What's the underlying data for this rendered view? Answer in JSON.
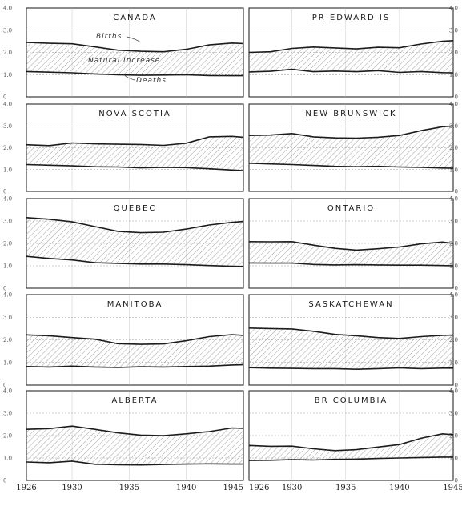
{
  "chart_data": {
    "type": "area",
    "x_years": [
      1926,
      1928,
      1930,
      1932,
      1934,
      1936,
      1938,
      1940,
      1942,
      1944,
      1945
    ],
    "x_tick_labels": [
      "1926",
      "1930",
      "1935",
      "1940",
      "1945"
    ],
    "y_tick_labels": [
      "0",
      "1.0",
      "2.0",
      "3.0",
      "4.0"
    ],
    "ylim": [
      0,
      40
    ],
    "annotations": {
      "births": "Births",
      "natural_increase": "Natural Increase",
      "deaths": "Deaths"
    },
    "panels": [
      {
        "title": "CANADA",
        "series": [
          {
            "name": "Births",
            "values": [
              24.5,
              24.1,
              23.9,
              22.5,
              21.0,
              20.5,
              20.3,
              21.4,
              23.4,
              24.2,
              24.0
            ]
          },
          {
            "name": "Deaths",
            "values": [
              11.4,
              11.1,
              10.8,
              10.3,
              9.9,
              9.7,
              9.8,
              9.9,
              9.6,
              9.5,
              9.5
            ]
          }
        ]
      },
      {
        "title": "PR EDWARD IS",
        "series": [
          {
            "name": "Births",
            "values": [
              20.0,
              20.3,
              21.8,
              22.4,
              22.0,
              21.6,
              22.3,
              22.1,
              23.8,
              25.0,
              25.3
            ]
          },
          {
            "name": "Deaths",
            "values": [
              11.2,
              11.5,
              12.4,
              11.3,
              11.6,
              11.3,
              11.8,
              11.0,
              11.4,
              10.9,
              10.8
            ]
          }
        ]
      },
      {
        "title": "NOVA SCOTIA",
        "series": [
          {
            "name": "Births",
            "values": [
              21.4,
              21.0,
              22.2,
              21.8,
              21.6,
              21.5,
              21.1,
              22.1,
              25.0,
              25.2,
              24.8
            ]
          },
          {
            "name": "Deaths",
            "values": [
              12.3,
              12.0,
              11.7,
              11.3,
              11.2,
              10.8,
              11.0,
              10.9,
              10.4,
              9.8,
              9.5
            ]
          }
        ]
      },
      {
        "title": "NEW BRUNSWICK",
        "series": [
          {
            "name": "Births",
            "values": [
              25.6,
              25.8,
              26.5,
              25.0,
              24.5,
              24.4,
              24.8,
              25.6,
              27.8,
              29.6,
              30.0
            ]
          },
          {
            "name": "Deaths",
            "values": [
              12.9,
              12.6,
              12.3,
              11.9,
              11.5,
              11.3,
              11.5,
              11.2,
              11.0,
              10.7,
              10.6
            ]
          }
        ]
      },
      {
        "title": "QUEBEC",
        "series": [
          {
            "name": "Births",
            "values": [
              31.5,
              30.8,
              29.6,
              27.5,
              25.4,
              24.8,
              25.0,
              26.4,
              28.2,
              29.4,
              29.8
            ]
          },
          {
            "name": "Deaths",
            "values": [
              14.2,
              13.3,
              12.6,
              11.4,
              11.1,
              10.8,
              10.8,
              10.5,
              10.1,
              9.8,
              9.7
            ]
          }
        ]
      },
      {
        "title": "ONTARIO",
        "series": [
          {
            "name": "Births",
            "values": [
              20.8,
              20.7,
              20.8,
              19.2,
              17.8,
              17.0,
              17.6,
              18.4,
              19.8,
              20.6,
              20.0
            ]
          },
          {
            "name": "Deaths",
            "values": [
              11.3,
              11.2,
              11.2,
              10.6,
              10.4,
              10.5,
              10.4,
              10.3,
              10.3,
              10.1,
              10.0
            ]
          }
        ]
      },
      {
        "title": "MANITOBA",
        "series": [
          {
            "name": "Births",
            "values": [
              22.2,
              21.8,
              21.0,
              20.3,
              18.3,
              18.0,
              18.2,
              19.6,
              21.4,
              22.3,
              22.0
            ]
          },
          {
            "name": "Deaths",
            "values": [
              8.2,
              8.0,
              8.4,
              8.0,
              7.8,
              8.1,
              8.0,
              8.2,
              8.4,
              8.9,
              9.0
            ]
          }
        ]
      },
      {
        "title": "SASKATCHEWAN",
        "series": [
          {
            "name": "Births",
            "values": [
              25.2,
              25.0,
              24.8,
              23.8,
              22.4,
              21.8,
              21.0,
              20.6,
              21.4,
              22.0,
              22.1
            ]
          },
          {
            "name": "Deaths",
            "values": [
              7.7,
              7.5,
              7.4,
              7.3,
              7.3,
              7.0,
              7.3,
              7.6,
              7.3,
              7.5,
              7.5
            ]
          }
        ]
      },
      {
        "title": "ALBERTA",
        "series": [
          {
            "name": "Births",
            "values": [
              22.8,
              23.1,
              24.2,
              22.8,
              21.2,
              20.2,
              20.0,
              20.8,
              21.8,
              23.4,
              23.2
            ]
          },
          {
            "name": "Deaths",
            "values": [
              8.2,
              7.9,
              8.6,
              7.2,
              7.0,
              6.9,
              7.1,
              7.3,
              7.4,
              7.3,
              7.3
            ]
          }
        ]
      },
      {
        "title": "BR COLUMBIA",
        "series": [
          {
            "name": "Births",
            "values": [
              15.6,
              15.2,
              15.3,
              14.1,
              13.3,
              13.7,
              14.9,
              16.0,
              18.8,
              20.8,
              20.4
            ]
          },
          {
            "name": "Deaths",
            "values": [
              8.9,
              9.0,
              9.3,
              9.1,
              9.4,
              9.5,
              9.8,
              10.0,
              10.2,
              10.4,
              10.4
            ]
          }
        ]
      }
    ]
  }
}
